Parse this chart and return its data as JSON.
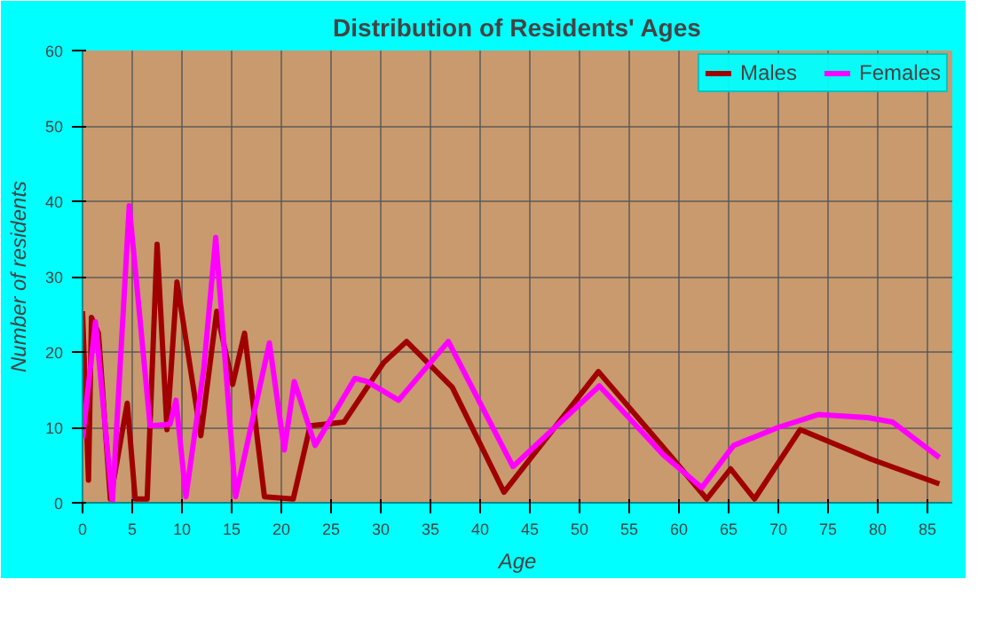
{
  "chart_data": {
    "type": "line",
    "title": "Distribution of Residents' Ages",
    "xlabel": "Age",
    "ylabel": "Number of residents",
    "xlim": [
      0,
      87.5
    ],
    "ylim": [
      0,
      60
    ],
    "xticks": [
      0,
      5,
      10,
      15,
      20,
      25,
      30,
      35,
      40,
      45,
      50,
      55,
      60,
      65,
      70,
      75,
      80,
      85
    ],
    "yticks": [
      0,
      10,
      20,
      30,
      40,
      50,
      60
    ],
    "grid": true,
    "legend": "top right",
    "line_style": "solid",
    "series": [
      {
        "name": "Males",
        "color": "#a00000",
        "x": [
          0,
          0.6,
          0.9,
          1.6,
          2.8,
          4.5,
          5.3,
          6.5,
          7.5,
          8.5,
          9.5,
          11.9,
          13.5,
          15.1,
          16.3,
          18.3,
          21.2,
          22.9,
          26.3,
          30.3,
          32.6,
          37.2,
          42.4,
          51.9,
          58.4,
          62.8,
          65.2,
          67.6,
          72.2,
          79.3,
          86.2
        ],
        "values": [
          25.4,
          3,
          24.6,
          22.5,
          0.5,
          13.2,
          0.5,
          0.5,
          34.3,
          9.7,
          29.3,
          8.9,
          25.4,
          15.7,
          22.5,
          0.8,
          0.5,
          10.2,
          10.7,
          18.6,
          21.4,
          15.3,
          1.4,
          17.4,
          7.4,
          0.5,
          4.5,
          0.5,
          9.7,
          5.8,
          2.5
        ]
      },
      {
        "name": "Females",
        "color": "#ff00ff",
        "x": [
          0,
          1.3,
          3.0,
          4.7,
          6.8,
          8.8,
          9.4,
          10.4,
          12.2,
          13.4,
          15.4,
          18.8,
          20.3,
          21.3,
          23.4,
          27.4,
          28.6,
          31.8,
          36.8,
          43.3,
          52,
          58.4,
          62.3,
          65.5,
          70,
          74,
          79,
          81.5,
          86.2
        ],
        "values": [
          8.5,
          24,
          0,
          39.4,
          10.2,
          10.4,
          13.6,
          0.8,
          17.8,
          35.2,
          0.8,
          21.2,
          7,
          16.1,
          7.6,
          16.5,
          16.1,
          13.6,
          21.4,
          4.8,
          15.5,
          6.4,
          2,
          7.6,
          10,
          11.7,
          11.3,
          10.7,
          6
        ]
      }
    ]
  }
}
